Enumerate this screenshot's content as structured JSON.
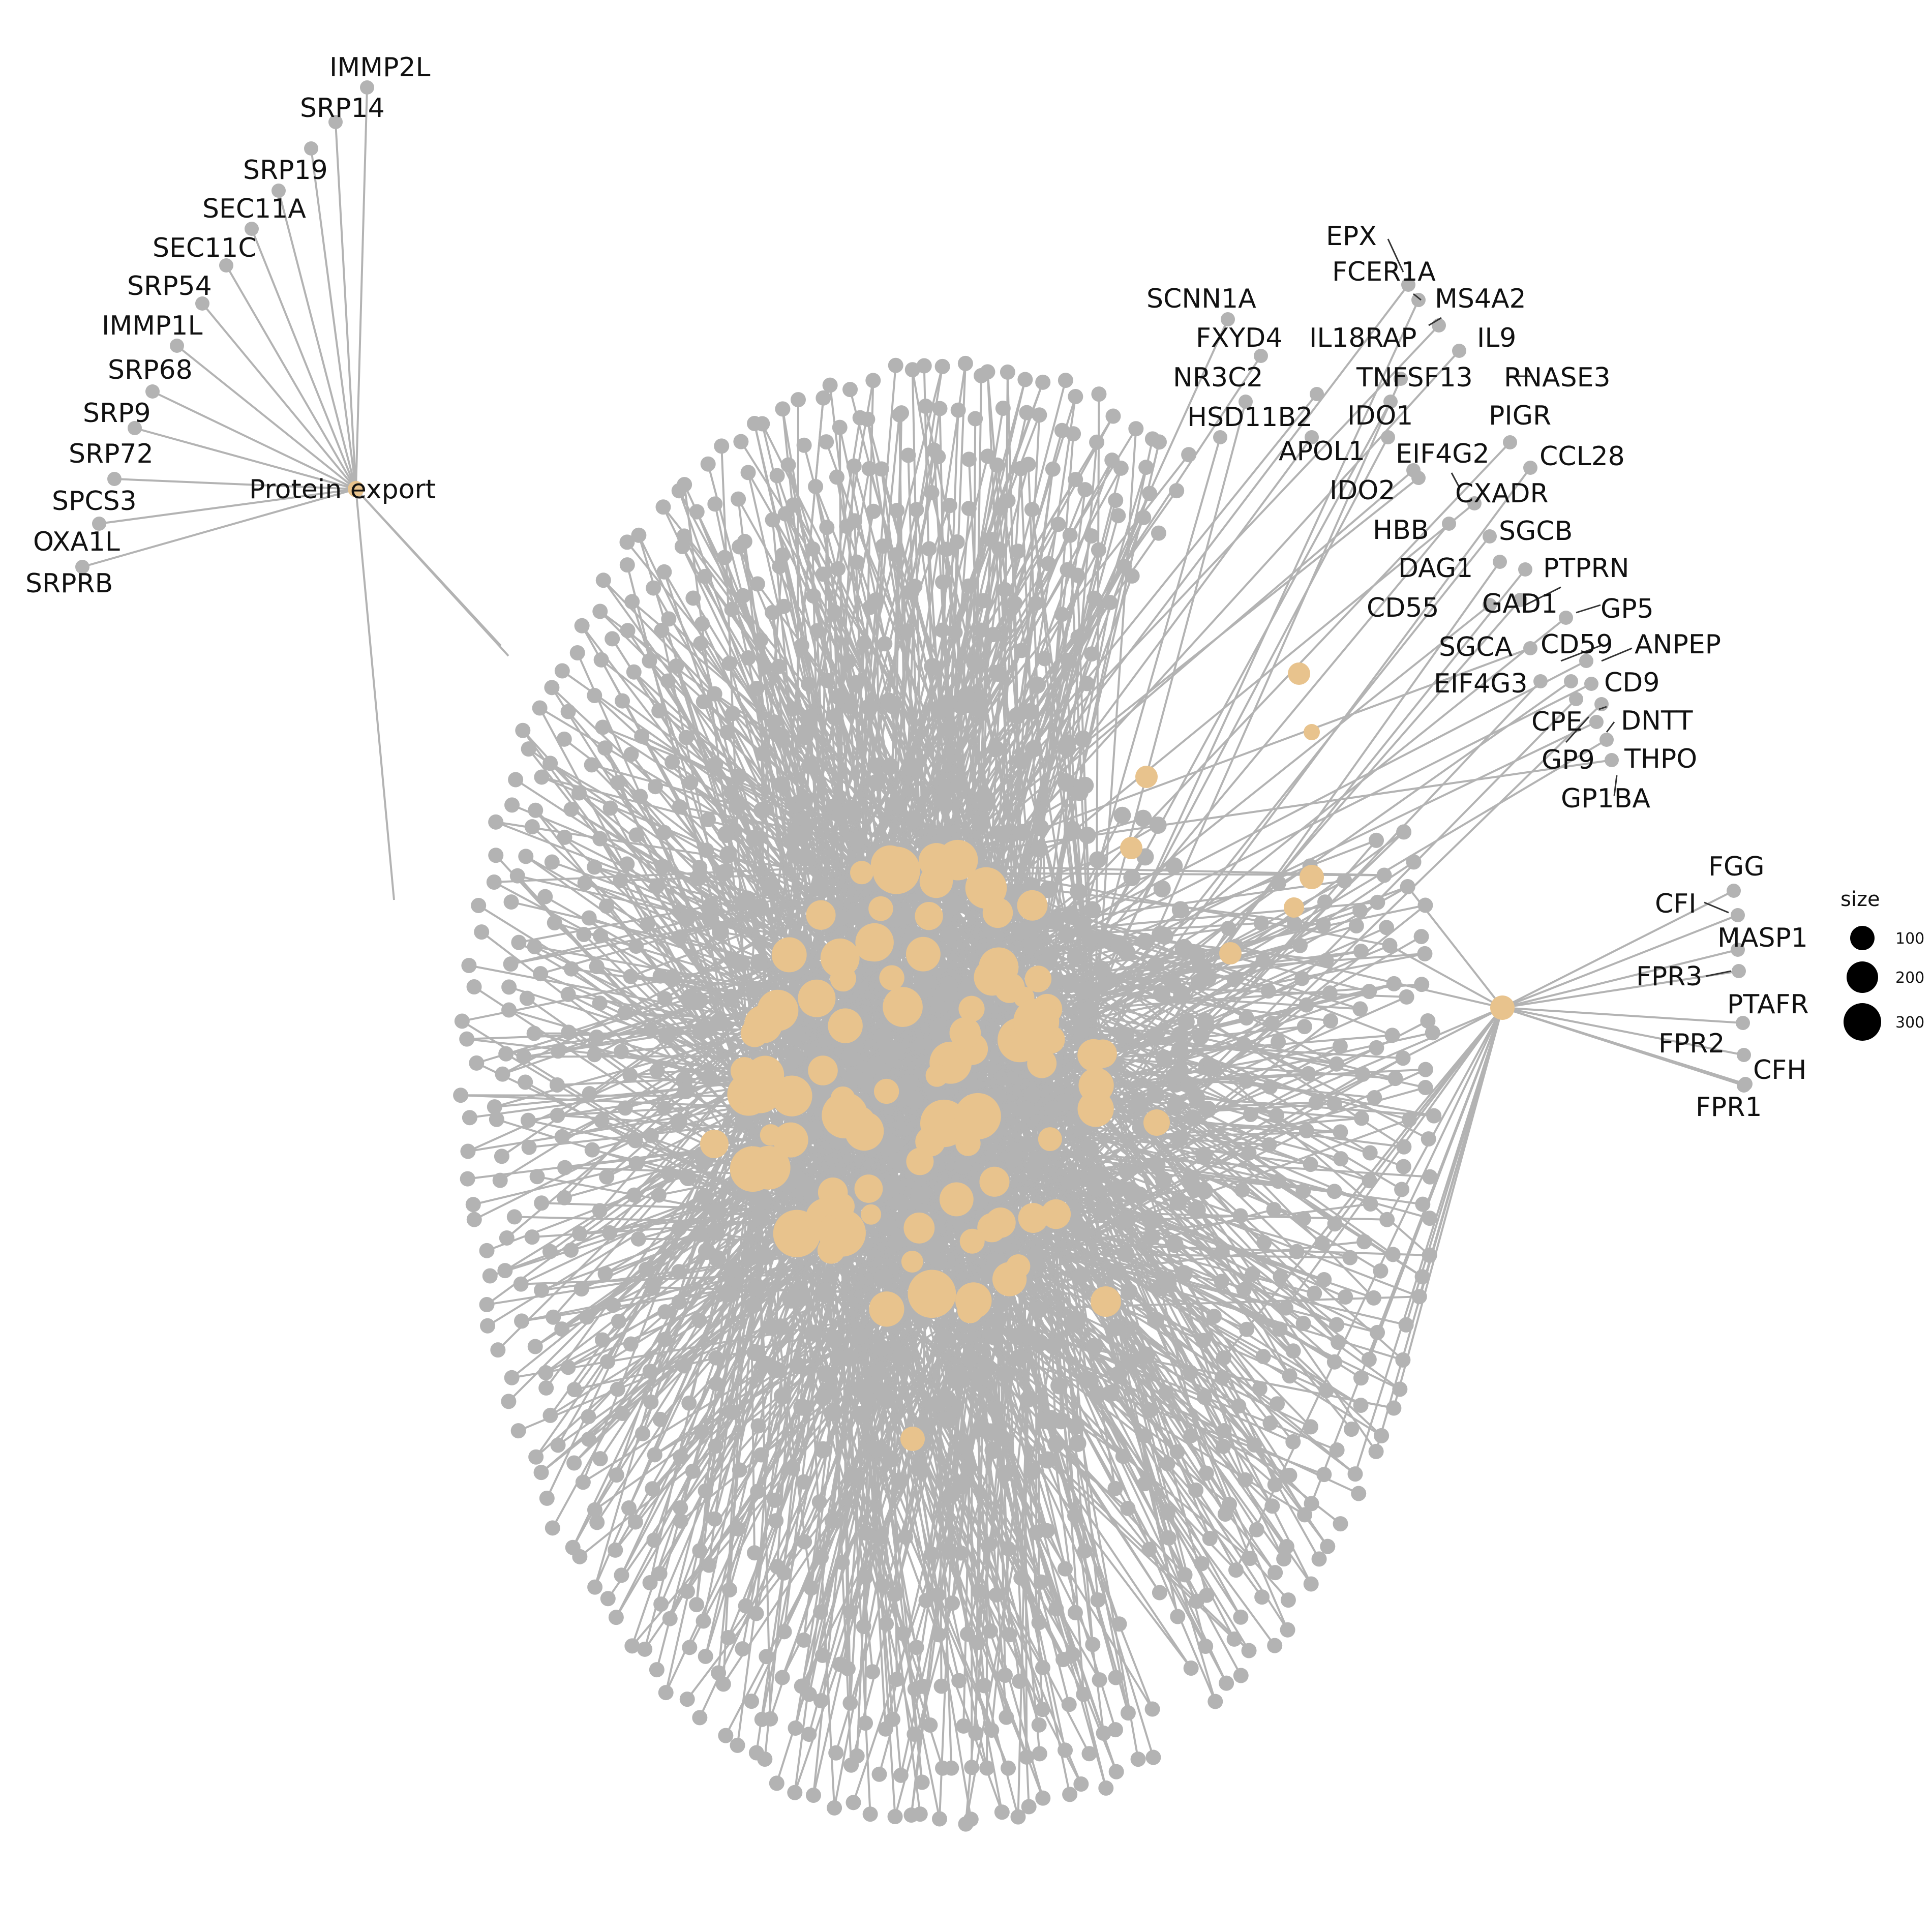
{
  "colors": {
    "gene_node": "#b3b3b3",
    "edge": "#b3b3b3",
    "category_node": "#e8c38d",
    "label_text": "#111111",
    "leader_line": "#333333",
    "legend_key": "#000000"
  },
  "hubs": {
    "protein_export": {
      "label": "Protein export",
      "genes": [
        "IMMP2L",
        "SRP14",
        "SRP19",
        "SEC11A",
        "SEC11C",
        "SRP54",
        "IMMP1L",
        "SRP68",
        "SRP9",
        "SRP72",
        "SPCS3",
        "OXA1L",
        "SRPRB"
      ]
    },
    "complement": {
      "label": "",
      "genes": [
        "FGG",
        "CFI",
        "MASP1",
        "FPR3",
        "PTAFR",
        "FPR2",
        "CFH",
        "FPR1"
      ]
    }
  },
  "top_right_labels": [
    "EPX",
    "FCER1A",
    "MS4A2",
    "SCNN1A",
    "FXYD4",
    "IL18RAP",
    "IL9",
    "NR3C2",
    "TNFSF13",
    "RNASE3",
    "HSD11B2",
    "IDO1",
    "PIGR",
    "APOL1",
    "EIF4G2",
    "CCL28",
    "IDO2",
    "CXADR",
    "HBB",
    "SGCB",
    "DAG1",
    "PTPRN",
    "CD55",
    "GAD1",
    "GP5",
    "SGCA",
    "CD59",
    "ANPEP",
    "EIF4G3",
    "CD9",
    "CPE",
    "DNTT",
    "GP9",
    "THPO",
    "GP1BA"
  ],
  "legend": {
    "title": "size",
    "ticks": [
      "100",
      "200",
      "300"
    ]
  }
}
